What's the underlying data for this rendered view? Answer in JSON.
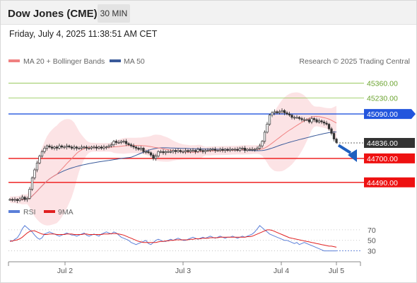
{
  "header": {
    "title": "Dow Jones (CME)",
    "timeframe": "30 MIN"
  },
  "datetime": "Friday, July 4, 2025 11:38:51 AM CET",
  "copyright": "Research © 2025 Trading Central",
  "legend": {
    "ma20": {
      "label": "MA 20 + Bollinger Bands",
      "color": "#f08080"
    },
    "ma50": {
      "label": "MA 50",
      "color": "#3a5a9a"
    }
  },
  "rsi_legend": {
    "rsi": {
      "label": "RSI",
      "color": "#5b7fd8"
    },
    "ma9": {
      "label": "9MA",
      "color": "#e02020"
    }
  },
  "levels": [
    {
      "label": "45360.00",
      "value": 45360,
      "type": "target",
      "color": "#8bc34a"
    },
    {
      "label": "45230.00",
      "value": 45230,
      "type": "target",
      "color": "#8bc34a"
    },
    {
      "label": "45090.00",
      "value": 45090,
      "type": "pivot",
      "color": "#2255dd"
    },
    {
      "label": "44836.00",
      "value": 44836,
      "type": "last",
      "color": "#333333"
    },
    {
      "label": "44700.00",
      "value": 44700,
      "type": "support",
      "color": "#ee1111"
    },
    {
      "label": "44490.00",
      "value": 44490,
      "type": "support",
      "color": "#ee1111"
    }
  ],
  "rsi_ticks": [
    "70",
    "50",
    "30"
  ],
  "chart_data": [
    {
      "type": "candlestick",
      "title": "Dow Jones (CME)",
      "x_labels": [
        "Jul 2",
        "Jul 3",
        "Jul 4",
        "Jul 5"
      ],
      "ylim": [
        44290,
        45500
      ],
      "series": [
        {
          "name": "Price",
          "close": [
            44340,
            44335,
            44340,
            44330,
            44345,
            44360,
            44340,
            44350,
            44430,
            44530,
            44600,
            44660,
            44720,
            44760,
            44790,
            44810,
            44800,
            44790,
            44800,
            44790,
            44810,
            44800,
            44800,
            44810,
            44800,
            44790,
            44800,
            44790,
            44790,
            44800,
            44800,
            44790,
            44790,
            44800,
            44800,
            44790,
            44800,
            44790,
            44800,
            44800,
            44810,
            44820,
            44850,
            44840,
            44840,
            44850,
            44850,
            44830,
            44820,
            44810,
            44800,
            44790,
            44780,
            44790,
            44760,
            44760,
            44750,
            44730,
            44700,
            44720,
            44760,
            44760,
            44750,
            44760,
            44760,
            44760,
            44770,
            44760,
            44770,
            44760,
            44760,
            44770,
            44760,
            44770,
            44770,
            44760,
            44780,
            44770,
            44760,
            44770,
            44770,
            44780,
            44780,
            44770,
            44770,
            44780,
            44770,
            44780,
            44770,
            44780,
            44780,
            44780,
            44770,
            44790,
            44790,
            44770,
            44780,
            44780,
            44780,
            44780,
            44790,
            44810,
            44850,
            44930,
            45000,
            45080,
            45100,
            45110,
            45100,
            45110,
            45120,
            45100,
            45090,
            45080,
            45060,
            45060,
            45060,
            45050,
            45040,
            45040,
            45040,
            45020,
            45050,
            45040,
            45020,
            45030,
            45020,
            45010,
            45000,
            44960,
            44920,
            44870,
            44840
          ]
        },
        {
          "name": "MA 20"
        },
        {
          "name": "MA 50"
        }
      ]
    },
    {
      "type": "line",
      "series": [
        {
          "name": "RSI",
          "values": [
            50,
            48,
            52,
            55,
            62,
            72,
            78,
            74,
            70,
            66,
            60,
            55,
            52,
            55,
            62,
            64,
            66,
            64,
            62,
            60,
            58,
            60,
            62,
            64,
            62,
            60,
            60,
            58,
            60,
            62,
            64,
            60,
            58,
            60,
            62,
            60,
            58,
            62,
            64,
            66,
            64,
            62,
            66,
            64,
            60,
            56,
            54,
            52,
            50,
            46,
            44,
            42,
            44,
            46,
            48,
            50,
            44,
            42,
            46,
            50,
            52,
            50,
            48,
            48,
            50,
            52,
            50,
            52,
            54,
            52,
            50,
            50,
            52,
            54,
            56,
            54,
            52,
            54,
            56,
            54,
            56,
            58,
            56,
            54,
            56,
            58,
            56,
            54,
            56,
            56,
            58,
            56,
            54,
            56,
            58,
            56,
            58,
            60,
            62,
            66,
            72,
            78,
            74,
            70,
            66,
            62,
            60,
            58,
            56,
            54,
            52,
            50,
            50,
            48,
            46,
            44,
            46,
            42,
            44,
            46,
            44,
            42,
            40,
            38,
            36,
            34,
            32,
            30,
            30,
            30,
            30,
            30,
            30
          ]
        },
        {
          "name": "9MA",
          "values": [
            48,
            49,
            50,
            51,
            53,
            56,
            60,
            64,
            67,
            68,
            68,
            66,
            64,
            62,
            61,
            61,
            62,
            62,
            62,
            61,
            61,
            61,
            61,
            62,
            62,
            62,
            61,
            61,
            61,
            61,
            62,
            62,
            61,
            61,
            61,
            61,
            61,
            61,
            62,
            62,
            62,
            63,
            63,
            63,
            62,
            61,
            60,
            58,
            56,
            54,
            52,
            50,
            48,
            47,
            46,
            46,
            46,
            46,
            46,
            46,
            47,
            48,
            48,
            49,
            49,
            50,
            50,
            51,
            51,
            51,
            51,
            51,
            51,
            52,
            52,
            53,
            53,
            53,
            54,
            54,
            54,
            55,
            55,
            55,
            55,
            56,
            56,
            56,
            56,
            56,
            56,
            56,
            56,
            56,
            56,
            56,
            57,
            57,
            58,
            60,
            62,
            64,
            66,
            68,
            70,
            70,
            69,
            67,
            65,
            63,
            61,
            59,
            57,
            55,
            54,
            53,
            52,
            51,
            50,
            49,
            48,
            47,
            46,
            45,
            44,
            43,
            42,
            41,
            40,
            39,
            39,
            38,
            37
          ]
        }
      ],
      "yticks": [
        70,
        50,
        30
      ]
    }
  ]
}
